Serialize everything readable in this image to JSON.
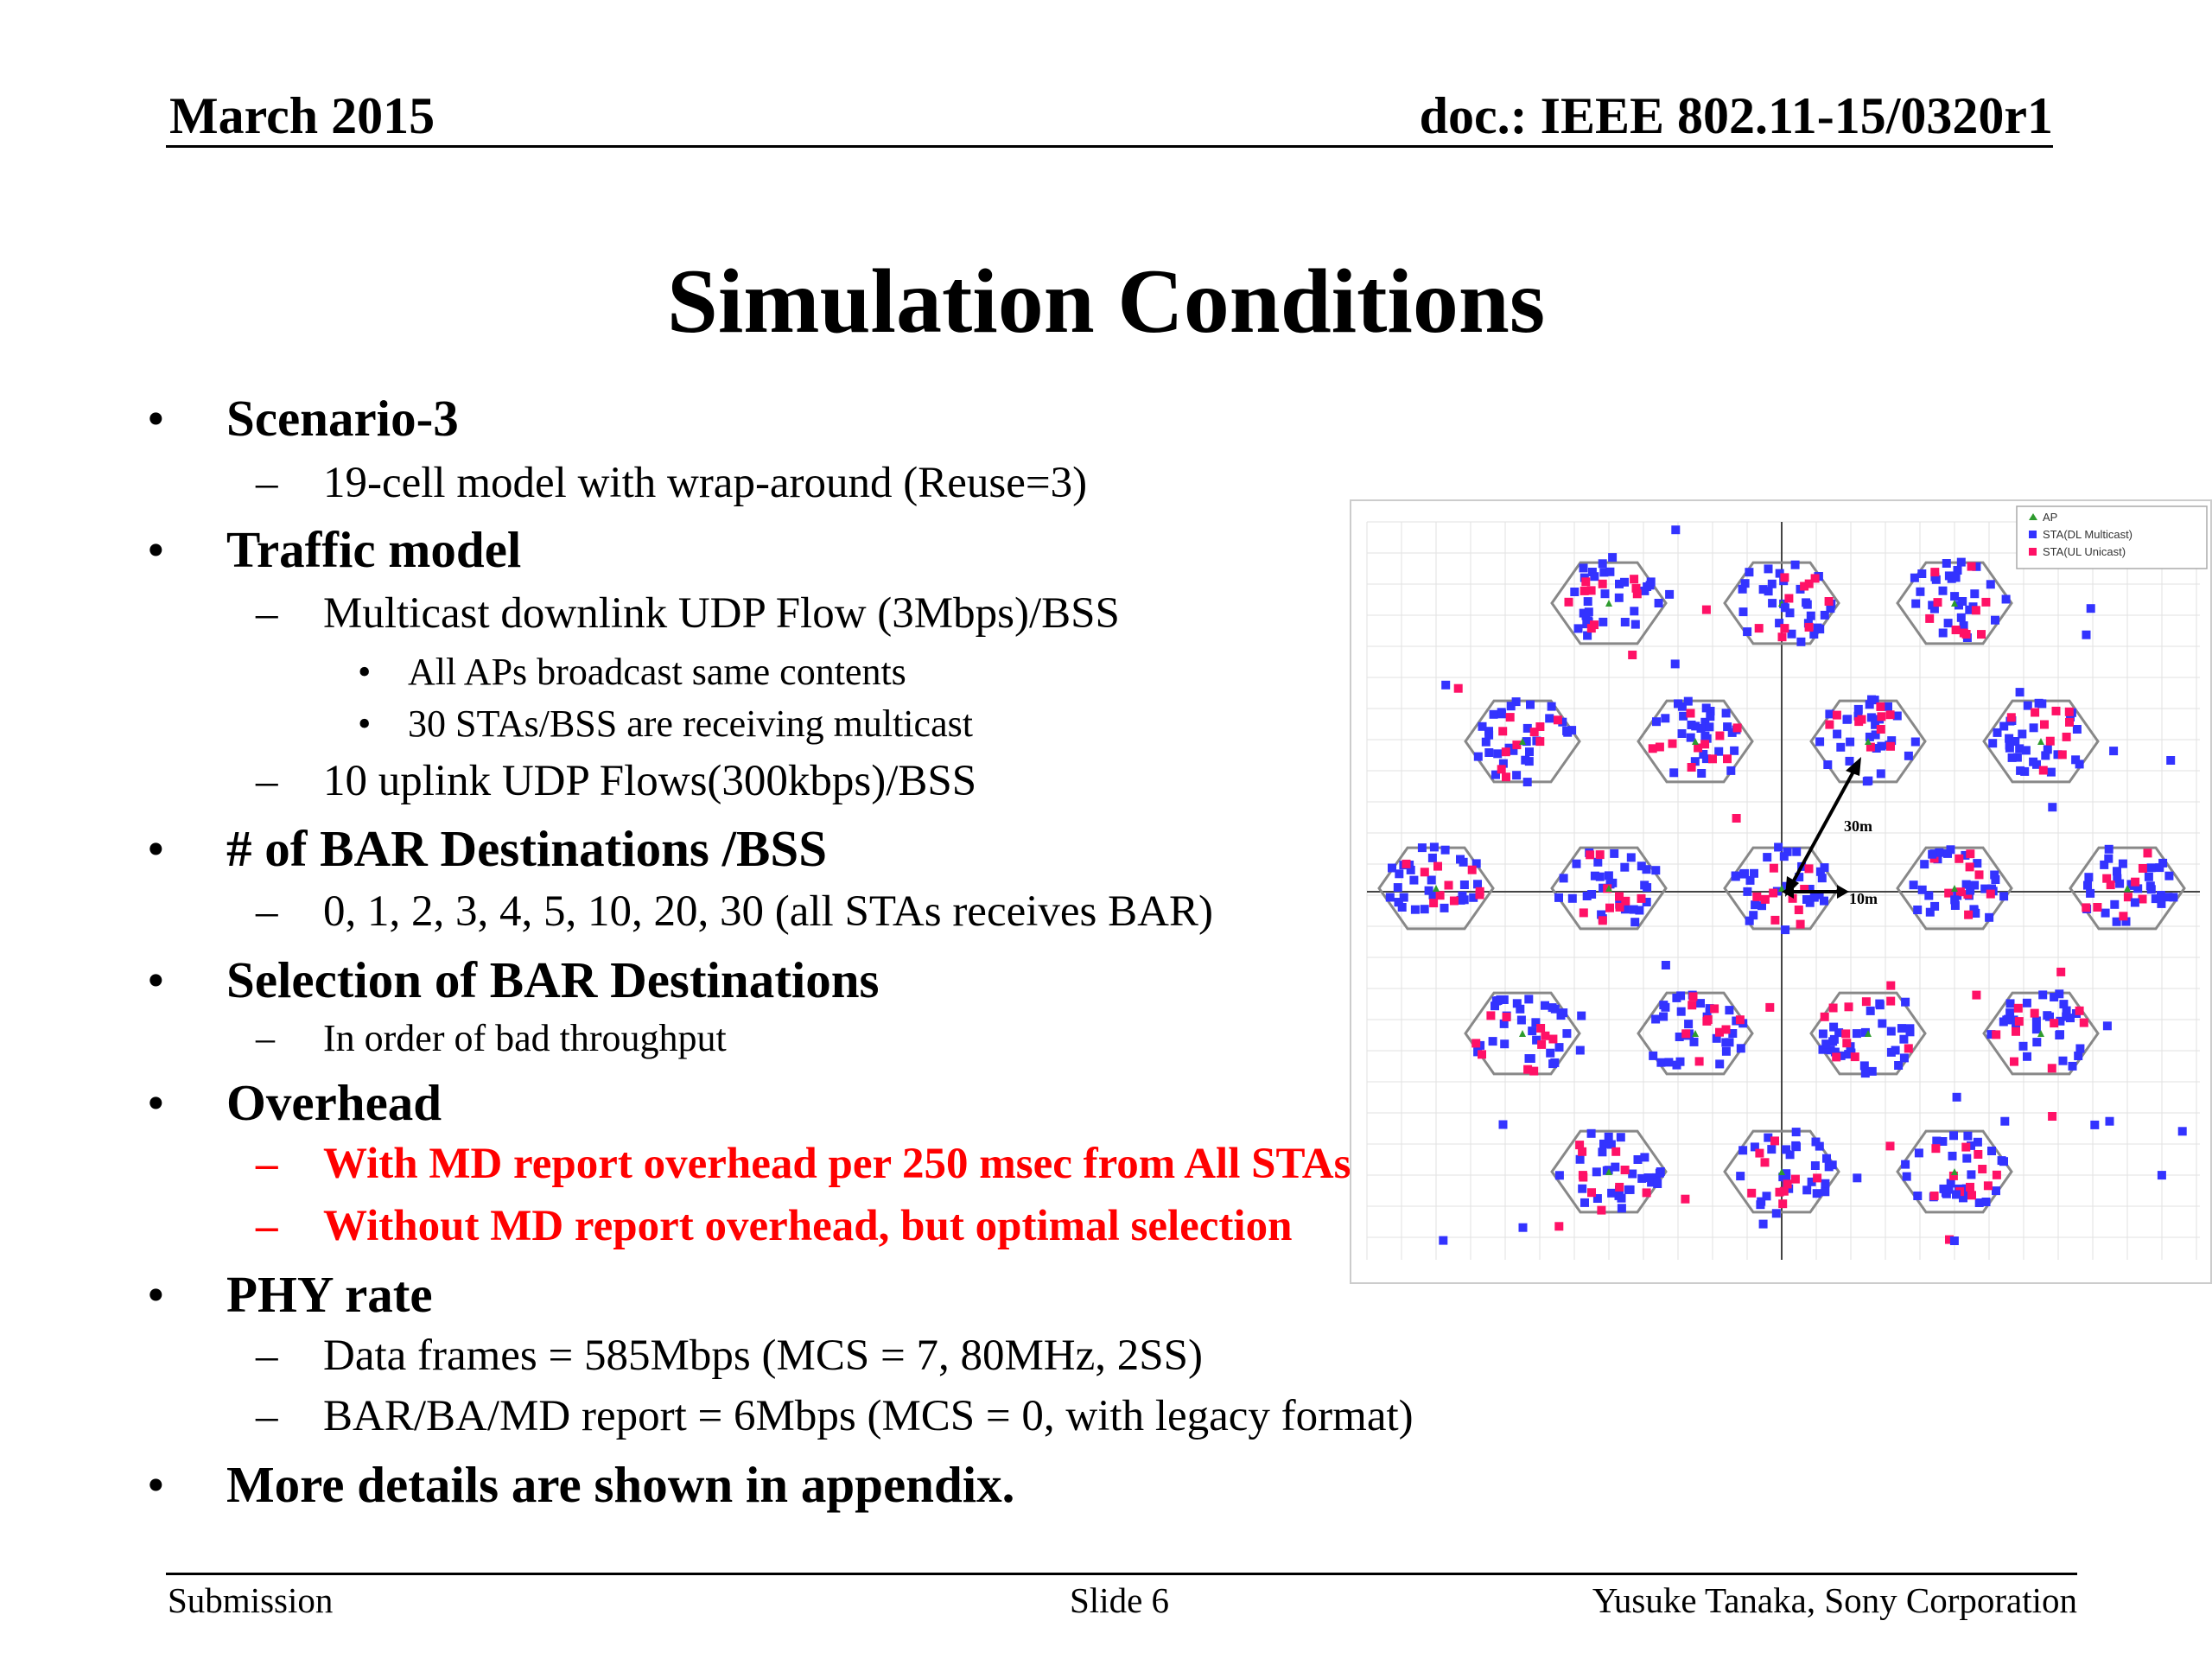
{
  "header": {
    "date": "March 2015",
    "doc": "doc.: IEEE 802.11-15/0320r1"
  },
  "title": "Simulation Conditions",
  "content": {
    "s1": {
      "label": "Scenario-3",
      "sub1": "19-cell model with wrap-around (Reuse=3)"
    },
    "s2": {
      "label": "Traffic model",
      "sub1": "Multicast downlink UDP Flow (3Mbps)/BSS",
      "sub1a": "All APs broadcast same contents",
      "sub1b": "30 STAs/BSS  are receiving multicast",
      "sub2": "10 uplink UDP Flows(300kbps)/BSS"
    },
    "s3": {
      "label": "# of BAR Destinations /BSS",
      "sub1": "0, 1, 2, 3, 4, 5, 10, 20, 30 (all STAs receives BAR)"
    },
    "s4": {
      "label": "Selection of BAR Destinations",
      "sub1": "In order of bad throughput"
    },
    "s5": {
      "label": "Overhead",
      "sub1": "With MD report overhead per 250 msec from All STAs",
      "sub2": "Without MD report overhead, but optimal selection"
    },
    "s6": {
      "label": "PHY rate",
      "sub1": "Data frames = 585Mbps (MCS = 7, 80MHz, 2SS)",
      "sub2": "BAR/BA/MD report = 6Mbps (MCS = 0, with legacy format)"
    },
    "s7": {
      "label": "More details are shown in appendix."
    }
  },
  "figure": {
    "legend": [
      "AP",
      "STA(DL Multicast)",
      "STA(UL Unicast)"
    ],
    "label_30m": "30m",
    "label_10m": "10m",
    "colors": {
      "ap": "#2e9b2e",
      "dl": "#3333ff",
      "ul": "#ff1166",
      "hex": "#888888"
    }
  },
  "footer": {
    "left": "Submission",
    "center": "Slide 6",
    "right": "Yusuke Tanaka, Sony Corporation"
  }
}
